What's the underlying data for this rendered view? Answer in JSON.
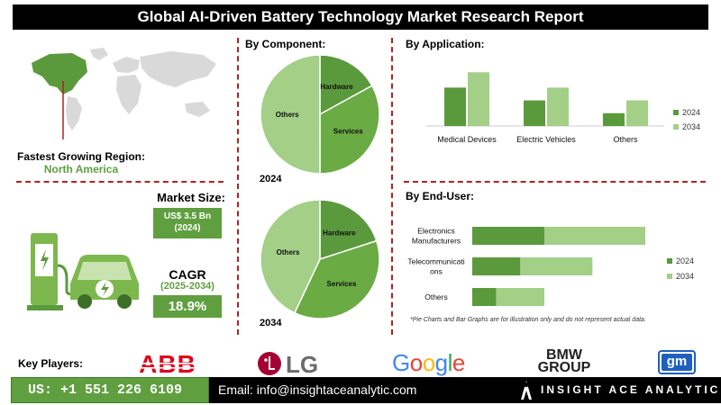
{
  "title": "Global AI-Driven Battery Technology Market Research Report",
  "region": {
    "label": "Fastest Growing Region:",
    "value": "North America"
  },
  "market_size": {
    "label": "Market Size:",
    "value": "US$ 3.5 Bn",
    "year": "(2024)"
  },
  "cagr": {
    "label": "CAGR",
    "period": "(2025-2034)",
    "value": "18.9%"
  },
  "key_players": {
    "label": "Key Players:",
    "logos": [
      "ABB",
      "LG",
      "Google",
      "BMW",
      "GROUP",
      "gm"
    ]
  },
  "footer": {
    "phone": "US: +1 551 226 6109",
    "email": "Email: info@insightaceanalytic.com",
    "brand": "INSIGHT ACE ANALYTIC"
  },
  "note": "*Pie Charts and Bar Graphs are for illustration only and do not represent actual data.",
  "colors": {
    "dark_green": "#5b9a3c",
    "mid_green": "#6aab43",
    "light_green": "#a3cf87",
    "accent": "#5f9f3f",
    "divider": "#b22222"
  },
  "chart_data": [
    {
      "type": "pie",
      "title": "By Component:",
      "caption": "2024",
      "labels": [
        "Hardware",
        "Services",
        "Others"
      ],
      "values": [
        17,
        33,
        50
      ]
    },
    {
      "type": "pie",
      "caption": "2034",
      "labels": [
        "Hardware",
        "Services",
        "Others"
      ],
      "values": [
        20,
        37,
        43
      ]
    },
    {
      "type": "bar",
      "title": "By Application:",
      "categories": [
        "Medical Devices",
        "Electric Vehicles",
        "Others"
      ],
      "series": [
        {
          "name": "2024",
          "values": [
            3,
            2,
            1
          ]
        },
        {
          "name": "2034",
          "values": [
            4.2,
            3,
            2
          ]
        }
      ],
      "ylim": [
        0,
        4.5
      ],
      "legend": "right"
    },
    {
      "type": "bar",
      "orientation": "horizontal",
      "stacked": true,
      "title": "By End-User:",
      "categories": [
        "Electronics Manufacturers",
        "Telecommunications",
        "Others"
      ],
      "category_lines": [
        [
          "Electronics",
          "Manufacturers"
        ],
        [
          "Telecommunicati",
          "ons"
        ],
        [
          "Others"
        ]
      ],
      "series": [
        {
          "name": "2024",
          "values": [
            3,
            2,
            1
          ]
        },
        {
          "name": "2034",
          "values": [
            4.2,
            3,
            2
          ]
        }
      ],
      "xlim": [
        0,
        7.5
      ],
      "legend": "right"
    }
  ]
}
